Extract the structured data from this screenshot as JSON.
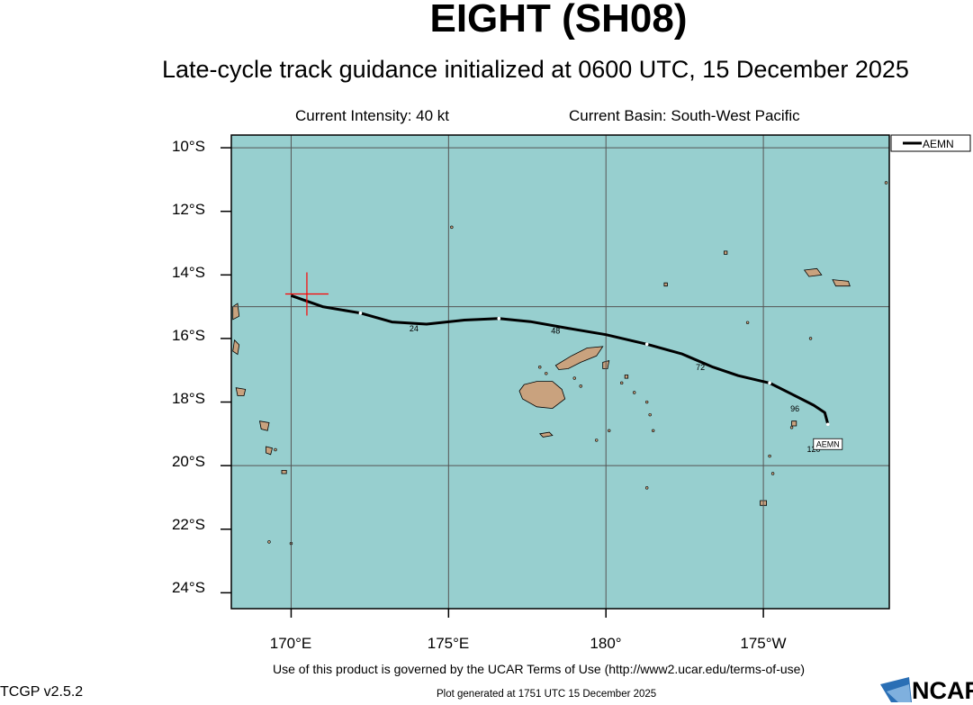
{
  "title": "EIGHT (SH08)",
  "subtitle": "Late-cycle track guidance initialized at 0600 UTC, 15 December 2025",
  "current_intensity": "Current Intensity: 40 kt",
  "current_basin": "Current Basin: South-West Pacific",
  "footer_terms": "Use of this product is governed by the UCAR Terms of Use (http://www2.ucar.edu/terms-of-use)",
  "version": "TCGP v2.5.2",
  "generated": "Plot generated at 1751 UTC   15 December 2025",
  "logo_text": "NCAR",
  "colors": {
    "ocean": "#97cfcf",
    "land": "#c9a27e",
    "track": "#000000",
    "current_position_marker": "#ff0000",
    "grid": "#555555"
  },
  "legend": [
    {
      "label": "AEMN"
    }
  ],
  "axes": {
    "lat_ticks": [
      "10°S",
      "12°S",
      "14°S",
      "16°S",
      "18°S",
      "20°S",
      "22°S",
      "24°S"
    ],
    "lon_ticks": [
      "170°E",
      "175°E",
      "180°",
      "175°W"
    ]
  },
  "chart_data": {
    "type": "line",
    "lon_range": [
      168.1,
      189.0
    ],
    "lat_range": [
      -24.5,
      -9.6
    ],
    "current_position": {
      "lon": 170.5,
      "lat": -14.6
    },
    "series": [
      {
        "name": "AEMN",
        "points": [
          {
            "lon": 170.0,
            "lat": -14.65
          },
          {
            "lon": 171.0,
            "lat": -15.0
          },
          {
            "lon": 172.2,
            "lat": -15.2
          },
          {
            "lon": 173.2,
            "lat": -15.48
          },
          {
            "lon": 174.3,
            "lat": -15.55
          },
          {
            "lon": 175.5,
            "lat": -15.42
          },
          {
            "lon": 176.6,
            "lat": -15.37
          },
          {
            "lon": 177.6,
            "lat": -15.47
          },
          {
            "lon": 178.8,
            "lat": -15.68
          },
          {
            "lon": 180.0,
            "lat": -15.88
          },
          {
            "lon": 181.3,
            "lat": -16.18
          },
          {
            "lon": 182.4,
            "lat": -16.48
          },
          {
            "lon": 183.4,
            "lat": -16.9
          },
          {
            "lon": 184.2,
            "lat": -17.17
          },
          {
            "lon": 185.2,
            "lat": -17.4
          },
          {
            "lon": 185.9,
            "lat": -17.75
          },
          {
            "lon": 186.6,
            "lat": -18.1
          },
          {
            "lon": 186.95,
            "lat": -18.33
          },
          {
            "lon": 187.05,
            "lat": -18.7
          }
        ],
        "tau_labels": [
          {
            "label": "24",
            "lon": 173.9,
            "lat": -15.78
          },
          {
            "label": "48",
            "lon": 178.4,
            "lat": -15.85
          },
          {
            "label": "72",
            "lon": 183.0,
            "lat": -17.0
          },
          {
            "label": "96",
            "lon": 186.0,
            "lat": -18.3
          },
          {
            "label": "120",
            "lon": 186.6,
            "lat": -19.57
          }
        ],
        "end_label": "AEMN"
      }
    ]
  }
}
